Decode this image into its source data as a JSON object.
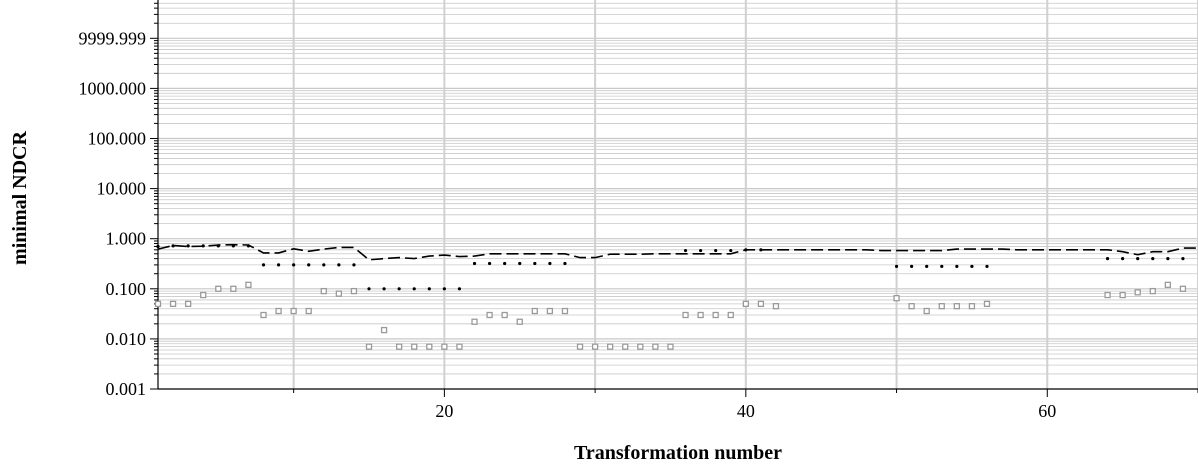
{
  "chart_data": {
    "type": "scatter",
    "title": "",
    "xlabel": "Transformation number",
    "ylabel": "minimal NDCR",
    "xlim": [
      1,
      70
    ],
    "ylim": [
      0.001,
      30000
    ],
    "yscale": "log",
    "grid": true,
    "legend": "none",
    "x_ticks": [
      20,
      40,
      60
    ],
    "x_tick_labels": [
      "20",
      "40",
      "60"
    ],
    "y_ticks": [
      0.001,
      0.01,
      0.1,
      1,
      10,
      100,
      1000,
      9999.999
    ],
    "y_tick_labels": [
      "0.001",
      "0.010",
      "0.100",
      "1.000",
      "10.000",
      "100.000",
      "1000.000",
      "9999.999"
    ],
    "series": [
      {
        "style": "dashdot",
        "color": "#000000",
        "x": [
          1,
          2,
          3,
          4,
          5,
          6,
          7,
          8,
          9,
          10,
          11,
          12,
          13,
          14,
          15,
          16,
          17,
          18,
          19,
          20,
          21,
          22,
          23,
          24,
          25,
          26,
          27,
          28,
          29,
          30,
          31,
          32,
          33,
          34,
          35,
          36,
          37,
          38,
          39,
          40,
          41,
          42,
          43,
          44,
          45,
          46,
          47,
          48,
          49,
          50,
          51,
          52,
          53,
          54,
          55,
          56,
          57,
          58,
          59,
          60,
          61,
          62,
          63,
          64,
          65,
          66,
          67,
          68,
          69,
          70
        ],
        "y": [
          0.62,
          0.73,
          0.7,
          0.71,
          0.75,
          0.76,
          0.75,
          0.52,
          0.52,
          0.63,
          0.56,
          0.62,
          0.67,
          0.67,
          0.38,
          0.4,
          0.42,
          0.4,
          0.45,
          0.47,
          0.44,
          0.45,
          0.5,
          0.5,
          0.5,
          0.5,
          0.5,
          0.5,
          0.42,
          0.42,
          0.49,
          0.49,
          0.49,
          0.5,
          0.5,
          0.5,
          0.5,
          0.5,
          0.5,
          0.6,
          0.6,
          0.6,
          0.6,
          0.6,
          0.6,
          0.6,
          0.6,
          0.6,
          0.58,
          0.58,
          0.58,
          0.58,
          0.58,
          0.62,
          0.62,
          0.62,
          0.62,
          0.6,
          0.6,
          0.6,
          0.6,
          0.6,
          0.6,
          0.6,
          0.55,
          0.48,
          0.55,
          0.55,
          0.65,
          0.65
        ]
      },
      {
        "style": "dotted",
        "color": "#000000",
        "x": [
          1,
          2,
          3,
          4,
          5,
          6,
          7,
          8,
          9,
          10,
          11,
          12,
          13,
          14,
          15,
          16,
          17,
          18,
          19,
          20,
          21,
          22,
          23,
          24,
          25,
          26,
          27,
          28,
          36,
          37,
          38,
          39,
          40,
          41,
          50,
          51,
          52,
          53,
          54,
          55,
          56,
          64,
          65,
          66,
          67,
          68,
          69
        ],
        "y": [
          0.7,
          0.72,
          0.72,
          0.72,
          0.72,
          0.72,
          0.72,
          0.3,
          0.3,
          0.3,
          0.3,
          0.3,
          0.3,
          0.3,
          0.1,
          0.1,
          0.1,
          0.1,
          0.1,
          0.1,
          0.1,
          0.32,
          0.32,
          0.32,
          0.32,
          0.32,
          0.32,
          0.32,
          0.58,
          0.58,
          0.58,
          0.58,
          0.6,
          0.6,
          0.28,
          0.28,
          0.28,
          0.28,
          0.28,
          0.28,
          0.28,
          0.4,
          0.4,
          0.4,
          0.4,
          0.4,
          0.4
        ]
      },
      {
        "style": "square-markers",
        "color": "#9a9a9a",
        "x": [
          1,
          2,
          3,
          4,
          5,
          6,
          7,
          8,
          9,
          10,
          11,
          12,
          13,
          14,
          15,
          16,
          17,
          18,
          19,
          20,
          21,
          22,
          23,
          24,
          25,
          26,
          27,
          28,
          29,
          30,
          31,
          32,
          33,
          34,
          35,
          36,
          37,
          38,
          39,
          40,
          41,
          42,
          50,
          51,
          52,
          53,
          54,
          55,
          56,
          64,
          65,
          66,
          67,
          68,
          69
        ],
        "y": [
          0.05,
          0.05,
          0.05,
          0.075,
          0.1,
          0.1,
          0.12,
          0.03,
          0.036,
          0.036,
          0.036,
          0.09,
          0.08,
          0.09,
          0.007,
          0.015,
          0.007,
          0.007,
          0.007,
          0.007,
          0.007,
          0.022,
          0.03,
          0.03,
          0.022,
          0.036,
          0.036,
          0.036,
          0.007,
          0.007,
          0.007,
          0.007,
          0.007,
          0.007,
          0.007,
          0.03,
          0.03,
          0.03,
          0.03,
          0.05,
          0.05,
          0.045,
          0.065,
          0.045,
          0.036,
          0.045,
          0.045,
          0.045,
          0.05,
          0.075,
          0.075,
          0.085,
          0.09,
          0.12,
          0.1
        ]
      }
    ]
  }
}
